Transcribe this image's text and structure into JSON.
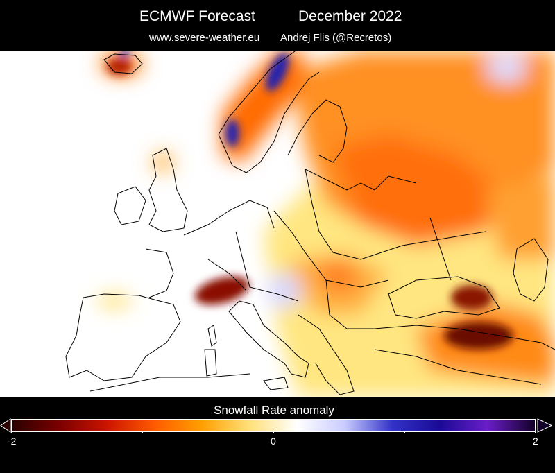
{
  "header": {
    "title_left": "ECMWF Forecast",
    "title_right": "December 2022",
    "subtitle_left": "www.severe-weather.eu",
    "subtitle_right": "Andrej Flis (@Recretos)"
  },
  "legend": {
    "title": "Snowfall Rate anomaly",
    "min_label": "-2",
    "mid_label": "0",
    "max_label": "2",
    "min": -2,
    "max": 2,
    "gradient_colors": [
      "#2a0000",
      "#7a0000",
      "#cc1400",
      "#ff5a00",
      "#ffa000",
      "#ffe07a",
      "#ffffff",
      "#c9ccff",
      "#3232c8",
      "#1a0a96",
      "#6a1ec8",
      "#120028"
    ]
  },
  "colors": {
    "land_outline": "#000000",
    "background": "#000000",
    "map_background": "#ffffff"
  }
}
